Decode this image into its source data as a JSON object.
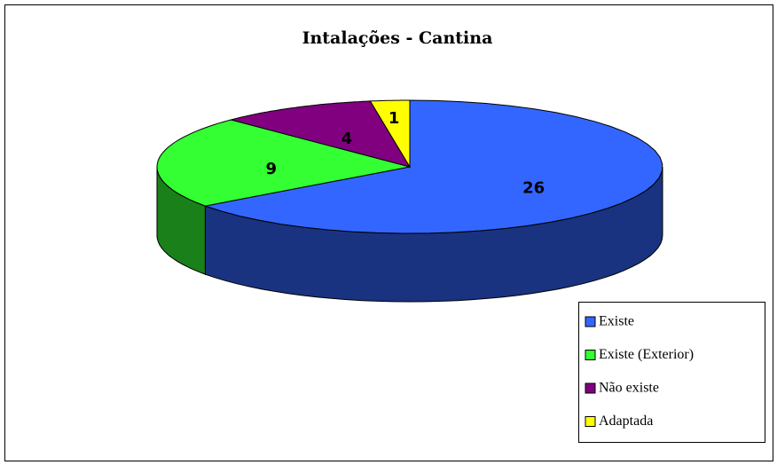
{
  "chart_data": {
    "type": "pie3d",
    "title": "Intalações - Cantina",
    "categories": [
      "Existe",
      "Existe (Exterior)",
      "Não existe",
      "Adaptada"
    ],
    "values": [
      26,
      9,
      4,
      1
    ],
    "colors": [
      "#3366ff",
      "#33ff33",
      "#800080",
      "#ffff00"
    ],
    "legend": "lower right"
  }
}
